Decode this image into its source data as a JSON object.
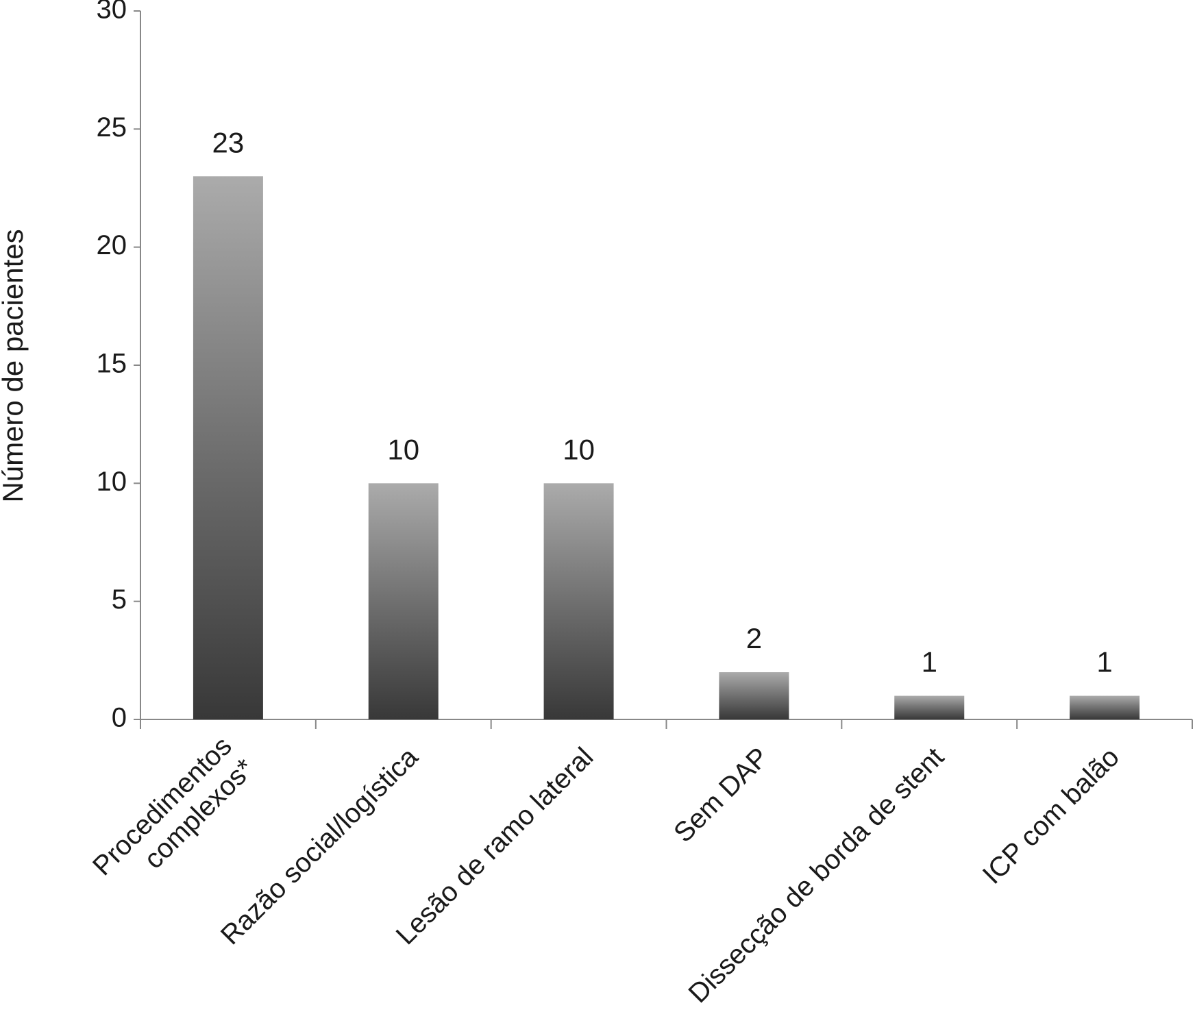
{
  "chart_data": {
    "type": "bar",
    "y_label": "Número de pacientes",
    "categories": [
      "Procedimentos\ncomplexos*",
      "Razão social/logística",
      "Lesão de ramo lateral",
      "Sem DAP",
      "Dissecção de borda de stent",
      "ICP com balão"
    ],
    "values": [
      23,
      10,
      10,
      2,
      1,
      1
    ],
    "ylim": [
      0,
      30
    ],
    "yticks": [
      0,
      5,
      10,
      15,
      20,
      25,
      30
    ],
    "grid": false
  }
}
